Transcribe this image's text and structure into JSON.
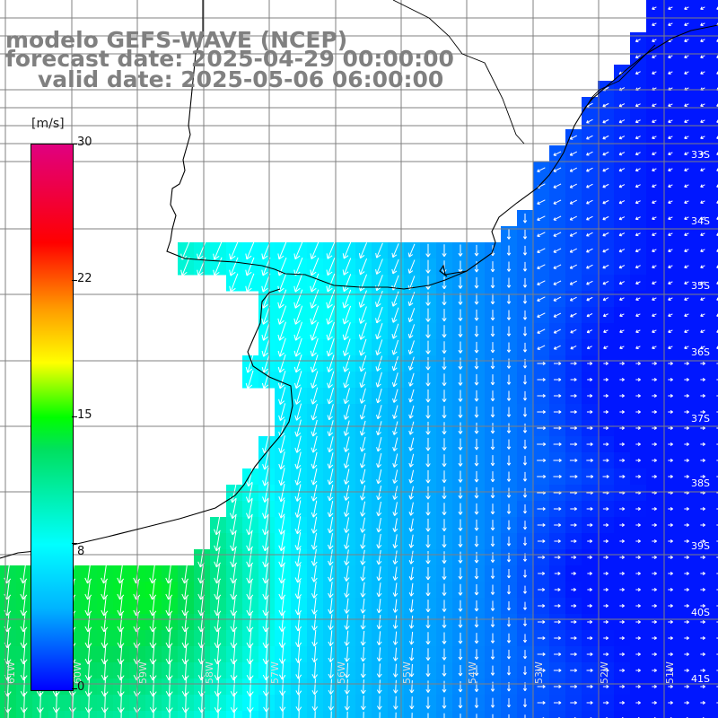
{
  "title": {
    "model": "modelo GEFS-WAVE (NCEP)",
    "forecast": "forecast date: 2025-04-29 00:00:00",
    "valid": "valid date: 2025-05-06 06:00:00"
  },
  "colorbar": {
    "unit": "[m/s]",
    "ticks": [
      {
        "value": 30,
        "label": "30"
      },
      {
        "value": 22,
        "label": "22"
      },
      {
        "value": 15,
        "label": "15"
      },
      {
        "value": 8,
        "label": "8"
      },
      {
        "value": 0,
        "label": "0"
      }
    ]
  },
  "lat_labels": [
    "33S",
    "34S",
    "35S",
    "36S",
    "37S",
    "38S",
    "39S",
    "40S",
    "41S"
  ],
  "lon_labels": [
    "61W",
    "60W",
    "59W",
    "58W",
    "57W",
    "56W",
    "55W",
    "54W",
    "53W",
    "52W",
    "51W"
  ],
  "colors": {
    "land": "#ffffff",
    "coast": "#000000",
    "grid": "#808080",
    "arrows": "#ffffff",
    "title": "#808080"
  }
}
